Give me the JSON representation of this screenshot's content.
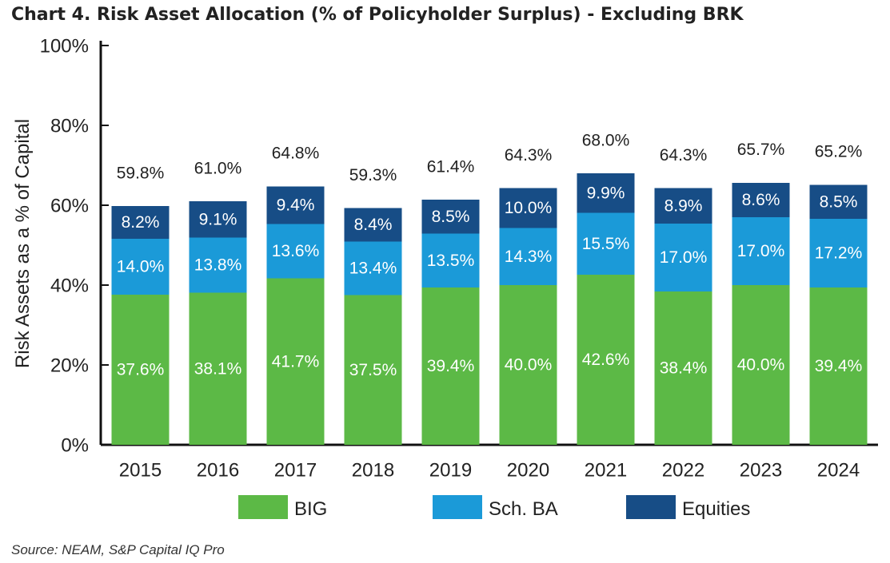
{
  "chart_data": {
    "type": "bar",
    "stacked": true,
    "title": "Chart 4. Risk Asset Allocation (% of Policyholder Surplus) - Excluding BRK",
    "xlabel": "",
    "ylabel": "Risk Assets as a % of Capital",
    "ylim": [
      0,
      100
    ],
    "yticks": [
      "0%",
      "20%",
      "40%",
      "60%",
      "80%",
      "100%"
    ],
    "ytick_values": [
      0,
      20,
      40,
      60,
      80,
      100
    ],
    "categories": [
      "2015",
      "2016",
      "2017",
      "2018",
      "2019",
      "2020",
      "2021",
      "2022",
      "2023",
      "2024"
    ],
    "series": [
      {
        "name": "BIG",
        "color": "#5cb946",
        "values": [
          37.6,
          38.1,
          41.7,
          37.5,
          39.4,
          40.0,
          42.6,
          38.4,
          40.0,
          39.4
        ],
        "labels": [
          "37.6%",
          "38.1%",
          "41.7%",
          "37.5%",
          "39.4%",
          "40.0%",
          "42.6%",
          "38.4%",
          "40.0%",
          "39.4%"
        ]
      },
      {
        "name": "Sch. BA",
        "color": "#1b9ad8",
        "values": [
          14.0,
          13.8,
          13.6,
          13.4,
          13.5,
          14.3,
          15.5,
          17.0,
          17.0,
          17.2
        ],
        "labels": [
          "14.0%",
          "13.8%",
          "13.6%",
          "13.4%",
          "13.5%",
          "14.3%",
          "15.5%",
          "17.0%",
          "17.0%",
          "17.2%"
        ]
      },
      {
        "name": "Equities",
        "color": "#174d86",
        "values": [
          8.2,
          9.1,
          9.4,
          8.4,
          8.5,
          10.0,
          9.9,
          8.9,
          8.6,
          8.5
        ],
        "labels": [
          "8.2%",
          "9.1%",
          "9.4%",
          "8.4%",
          "8.5%",
          "10.0%",
          "9.9%",
          "8.9%",
          "8.6%",
          "8.5%"
        ]
      }
    ],
    "totals": [
      59.8,
      61.0,
      64.8,
      59.3,
      61.4,
      64.3,
      68.0,
      64.3,
      65.7,
      65.2
    ],
    "total_labels": [
      "59.8%",
      "61.0%",
      "64.8%",
      "59.3%",
      "61.4%",
      "64.3%",
      "68.0%",
      "64.3%",
      "65.7%",
      "65.2%"
    ],
    "legend": [
      "BIG",
      "Sch. BA",
      "Equities"
    ],
    "legend_position": "bottom",
    "grid": false
  },
  "source": "Source: NEAM, S&P Capital IQ Pro"
}
